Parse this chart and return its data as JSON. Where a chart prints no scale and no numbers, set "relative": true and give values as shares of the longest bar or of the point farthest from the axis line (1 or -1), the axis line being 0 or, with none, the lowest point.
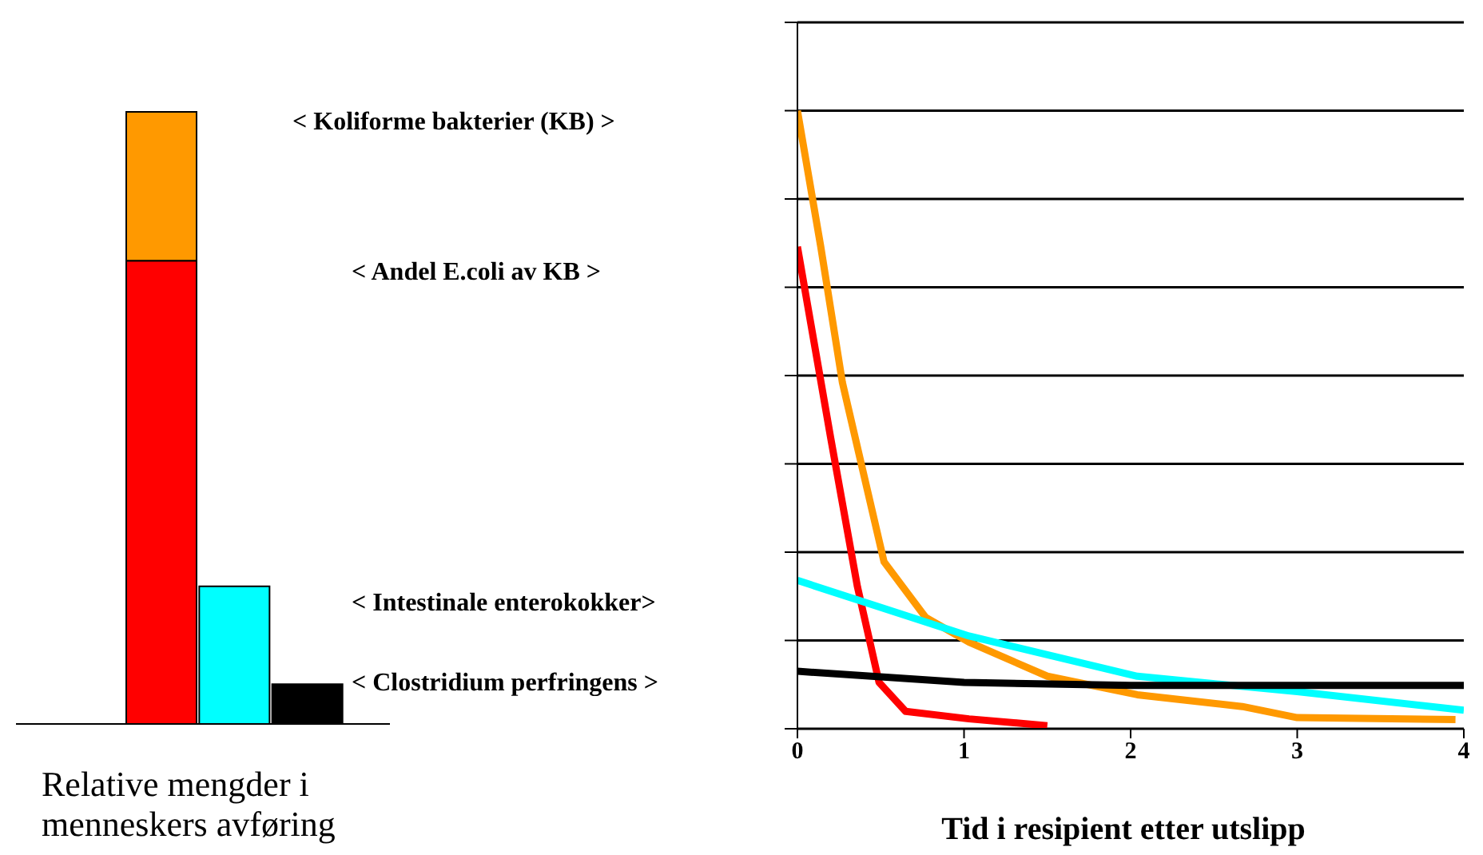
{
  "chart_data": [
    {
      "type": "bar",
      "relative": true,
      "stacked": true,
      "categories": [
        null,
        null,
        null
      ],
      "xlabel": "Relative mengder i menneskers avføring",
      "series": [
        {
          "color": "#ff0000",
          "values": [
            0.757,
            null,
            null
          ]
        },
        {
          "color": "#ff9900",
          "values": [
            0.243,
            null,
            null
          ]
        },
        {
          "color": "#00ffff",
          "values": [
            null,
            0.225,
            null
          ]
        },
        {
          "color": "#000000",
          "values": [
            null,
            null,
            0.065
          ]
        }
      ],
      "annotations": [
        "< Koliforme bakterier (KB) >",
        "< Andel E.coli av KB >",
        "< Intestinale enterokokker>",
        "< Clostridium perfringens >"
      ]
    },
    {
      "type": "line",
      "relative": true,
      "xlabel": "Tid i resipient etter utslipp",
      "xlim": [
        0,
        4
      ],
      "xticks": [
        0,
        1,
        2,
        3,
        4
      ],
      "grid": "y",
      "marker": "none",
      "line_style": "solid",
      "series": [
        {
          "color": "#ff9900",
          "x": [
            0,
            0.14,
            0.27,
            0.52,
            0.77,
            1.03,
            1.5,
            2.04,
            2.67,
            3,
            3.95
          ],
          "values": [
            1.0,
            0.78,
            0.56,
            0.27,
            0.18,
            0.14,
            0.085,
            0.055,
            0.036,
            0.018,
            0.015
          ]
        },
        {
          "color": "#ff0000",
          "x": [
            0,
            0.2,
            0.36,
            0.49,
            0.65,
            1.03,
            1.5
          ],
          "values": [
            0.78,
            0.47,
            0.23,
            0.075,
            0.028,
            0.016,
            0.005
          ]
        },
        {
          "color": "#00ffff",
          "x": [
            0,
            1.03,
            2.04,
            3,
            4
          ],
          "values": [
            0.24,
            0.15,
            0.085,
            0.06,
            0.03
          ]
        },
        {
          "color": "#000000",
          "x": [
            0,
            1,
            2,
            4
          ],
          "values": [
            0.093,
            0.075,
            0.07,
            0.07
          ]
        }
      ]
    }
  ]
}
